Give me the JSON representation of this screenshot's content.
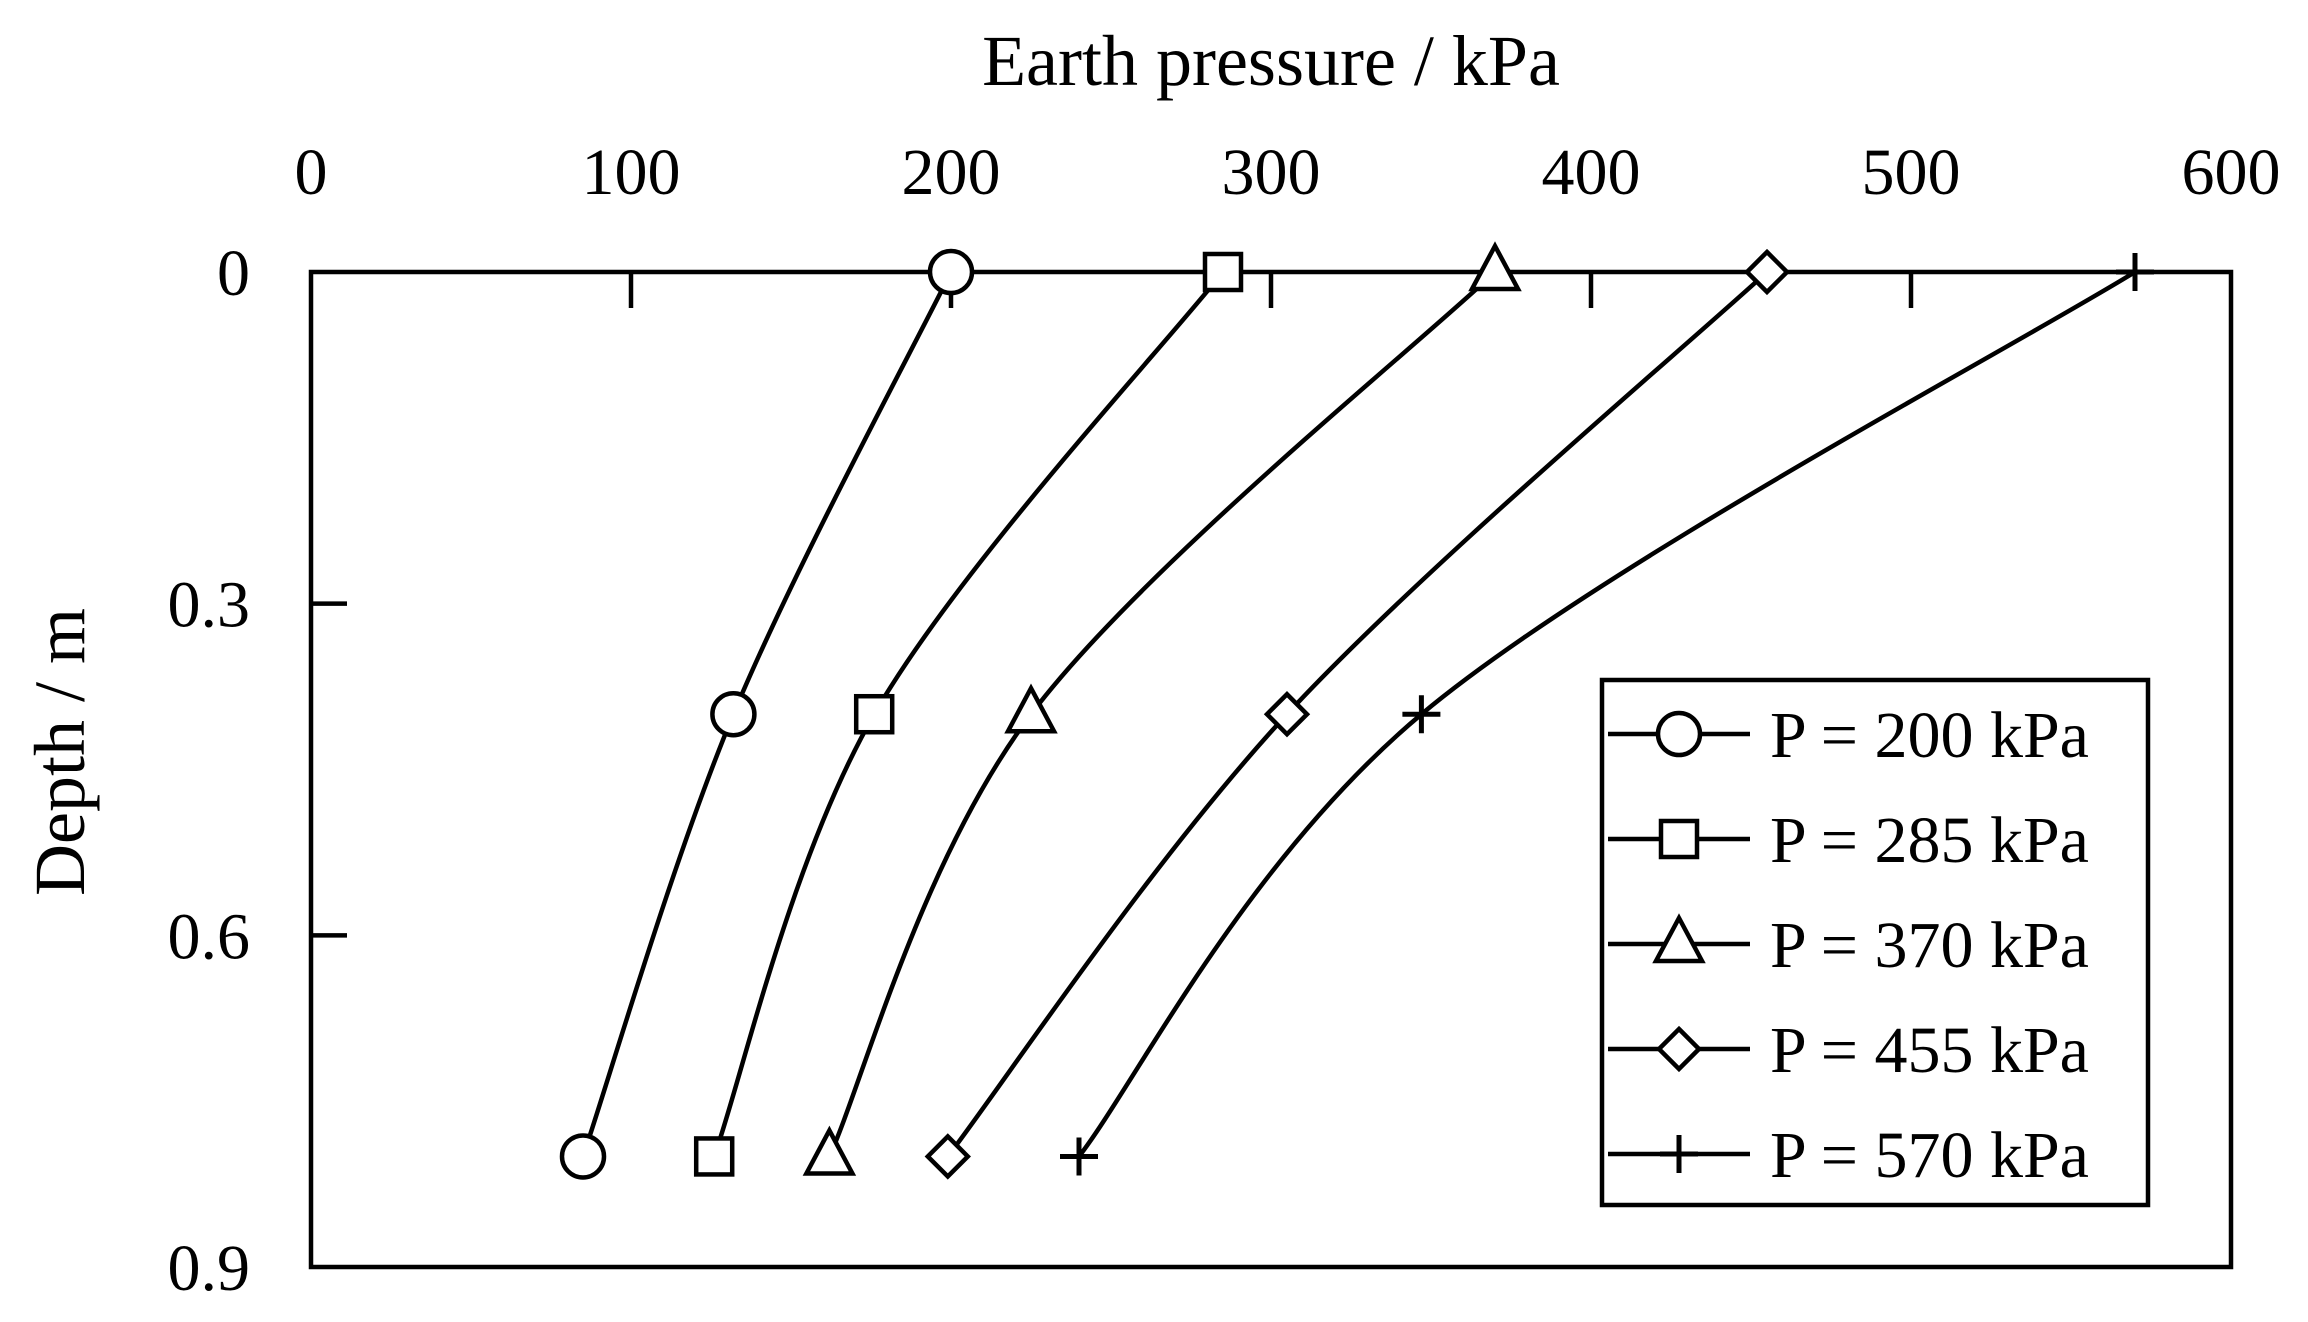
{
  "chart_data": {
    "type": "line",
    "title": "",
    "xlabel": "Earth pressure / kPa",
    "ylabel": "Depth / m",
    "x_axis_position": "top",
    "y_axis_inverted": true,
    "xlim": [
      0,
      600
    ],
    "ylim": [
      0,
      0.9
    ],
    "xticks": [
      0,
      100,
      200,
      300,
      400,
      500,
      600
    ],
    "xtick_labels": [
      "0",
      "100",
      "200",
      "300",
      "400",
      "500",
      "600"
    ],
    "yticks": [
      0,
      0.3,
      0.6,
      0.9
    ],
    "ytick_labels": [
      "0",
      "0.3",
      "0.6",
      "0.9"
    ],
    "grid": false,
    "legend_position": "bottom-right",
    "series": [
      {
        "name": "P = 200 kPa",
        "marker": "circle",
        "x": [
          200,
          132,
          85
        ],
        "y": [
          0,
          0.4,
          0.8
        ]
      },
      {
        "name": "P = 285 kPa",
        "marker": "square",
        "x": [
          285,
          176,
          126
        ],
        "y": [
          0,
          0.4,
          0.8
        ]
      },
      {
        "name": "P = 370 kPa",
        "marker": "triangle",
        "x": [
          370,
          225,
          162
        ],
        "y": [
          0,
          0.4,
          0.8
        ]
      },
      {
        "name": "P = 455 kPa",
        "marker": "diamond",
        "x": [
          455,
          305,
          199
        ],
        "y": [
          0,
          0.4,
          0.8
        ]
      },
      {
        "name": "P = 570 kPa",
        "marker": "plus",
        "x": [
          570,
          347,
          240
        ],
        "y": [
          0,
          0.4,
          0.8
        ]
      }
    ]
  }
}
